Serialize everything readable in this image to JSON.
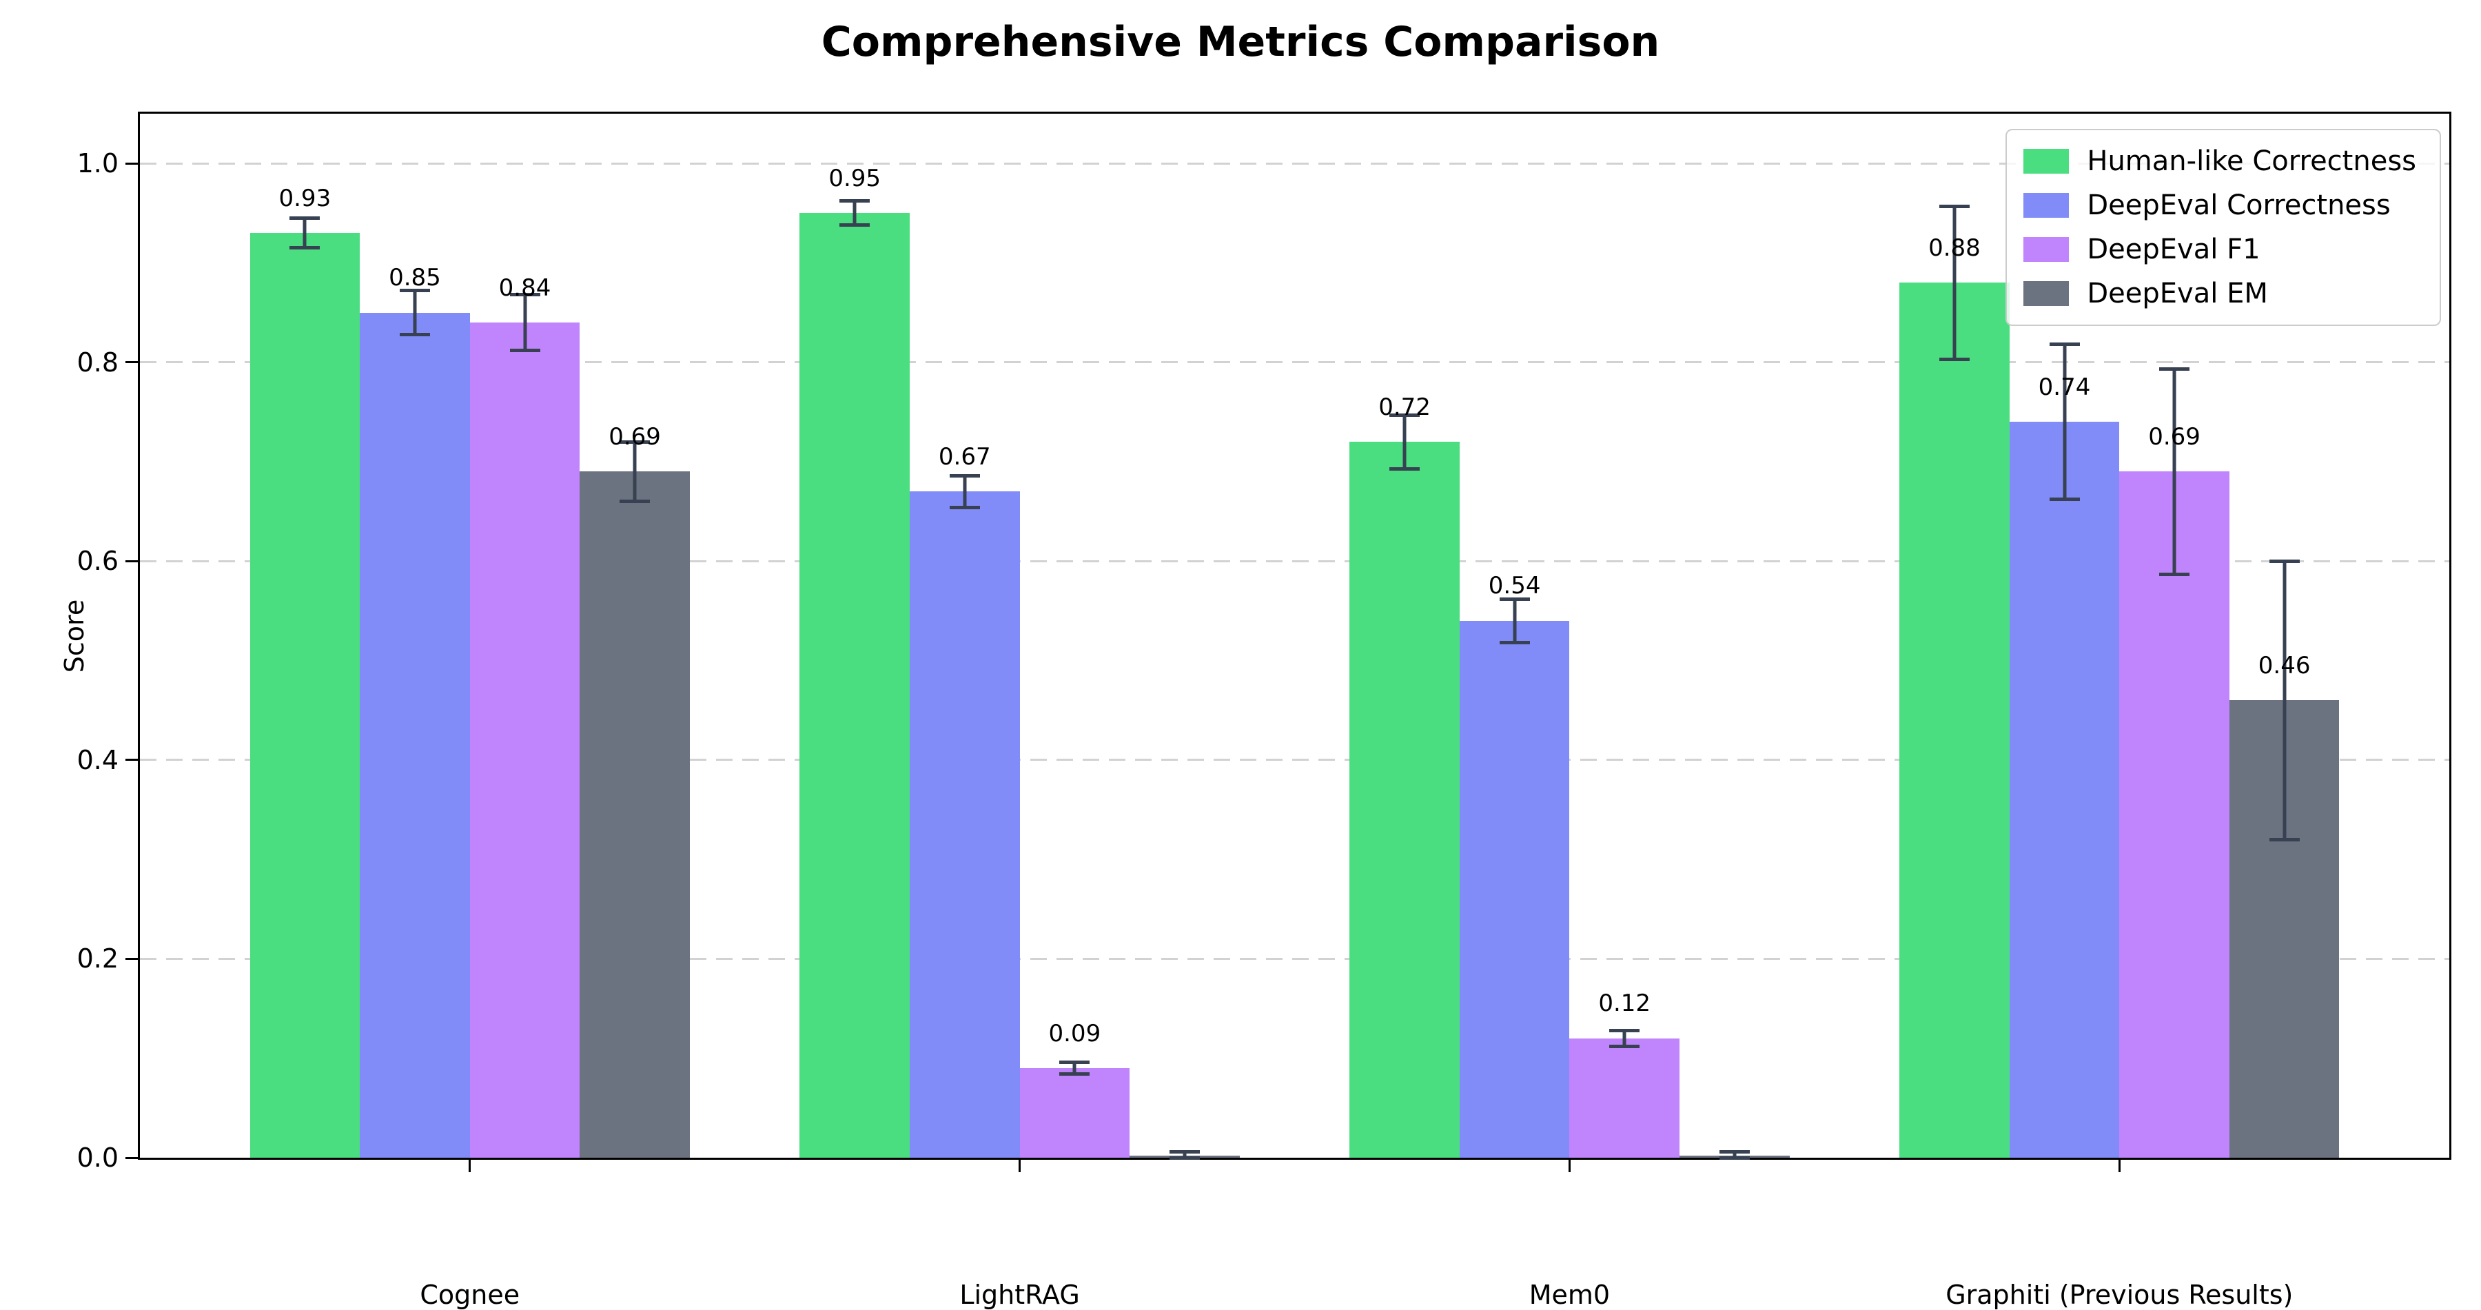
{
  "title": "Comprehensive Metrics Comparison",
  "chart_data": {
    "type": "bar",
    "title": "Comprehensive Metrics Comparison",
    "xlabel": "",
    "ylabel": "Score",
    "ylim": [
      0,
      1.05
    ],
    "xlim": [
      -0.6,
      3.6
    ],
    "bar_width_units": 0.2,
    "grid": "horizontal-dashed",
    "legend_position": "upper-right",
    "yticks": [
      {
        "value": 0.0,
        "label": "0.0"
      },
      {
        "value": 0.2,
        "label": "0.2"
      },
      {
        "value": 0.4,
        "label": "0.4"
      },
      {
        "value": 0.6,
        "label": "0.6"
      },
      {
        "value": 0.8,
        "label": "0.8"
      },
      {
        "value": 1.0,
        "label": "1.0"
      }
    ],
    "categories": [
      "Cognee",
      "LightRAG",
      "Mem0",
      "Graphiti (Previous Results)"
    ],
    "series": [
      {
        "name": "Human-like Correctness",
        "color": "#4ade80",
        "values": [
          0.93,
          0.95,
          0.72,
          0.88
        ],
        "errors": [
          0.015,
          0.012,
          0.027,
          0.077
        ],
        "labels": [
          "0.93",
          "0.95",
          "0.72",
          "0.88"
        ]
      },
      {
        "name": "DeepEval Correctness",
        "color": "#818cf8",
        "values": [
          0.85,
          0.67,
          0.54,
          0.74
        ],
        "errors": [
          0.022,
          0.016,
          0.022,
          0.078
        ],
        "labels": [
          "0.85",
          "0.67",
          "0.54",
          "0.74"
        ]
      },
      {
        "name": "DeepEval F1",
        "color": "#c084fc",
        "values": [
          0.84,
          0.09,
          0.12,
          0.69
        ],
        "errors": [
          0.028,
          0.006,
          0.008,
          0.103
        ],
        "labels": [
          "0.84",
          "0.09",
          "0.12",
          "0.69"
        ]
      },
      {
        "name": "DeepEval EM",
        "color": "#6b7280",
        "values": [
          0.69,
          0.002,
          0.002,
          0.46
        ],
        "errors": [
          0.03,
          0.004,
          0.004,
          0.14
        ],
        "labels": [
          "0.69",
          "",
          "",
          "0.46"
        ]
      }
    ],
    "colors": {
      "error_bar": "#374151",
      "grid": "#d2d2d2",
      "spine": "#000000",
      "background": "#ffffff"
    },
    "value_label_offset": 0.035
  }
}
